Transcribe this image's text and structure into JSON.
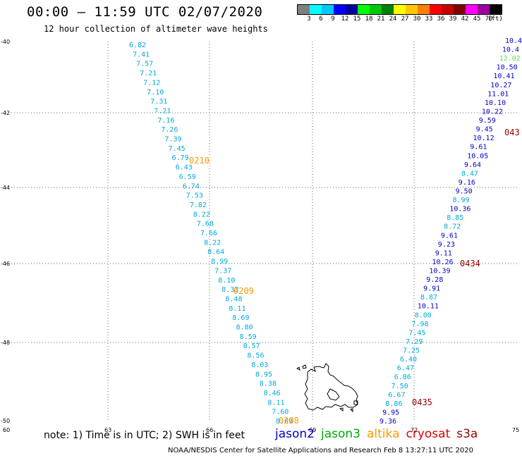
{
  "title": "00:00 – 11:59 UTC 02/07/2020",
  "subtitle": "12 hour collection of altimeter wave heights",
  "legend": {
    "colors": [
      "#808080",
      "#00ffff",
      "#00c8ff",
      "#0000ff",
      "#0000a0",
      "#00ff00",
      "#00c800",
      "#008000",
      "#ffff00",
      "#ffc800",
      "#ff8000",
      "#ff0000",
      "#c80000",
      "#800000",
      "#ff00ff",
      "#a000a0",
      "#000000"
    ],
    "labels": [
      "3",
      "6",
      "9",
      "12",
      "15",
      "18",
      "21",
      "24",
      "27",
      "30",
      "33",
      "36",
      "39",
      "42",
      "45",
      "70",
      "(ft)"
    ]
  },
  "map": {
    "lon_range": [
      60,
      75
    ],
    "lat_range": [
      -50,
      -40
    ],
    "x_ticks": [
      "60",
      "63",
      "66",
      "69",
      "72",
      "75"
    ],
    "y_ticks": [
      "-40",
      "-42",
      "-44",
      "-46",
      "-48",
      "-50"
    ],
    "track1": {
      "color": "#00aadd",
      "values": [
        "6.82",
        "7.41",
        "7.57",
        "7.21",
        "7.12",
        "7.10",
        "7.31",
        "7.21",
        "7.16",
        "7.26",
        "7.39",
        "7.45",
        "6.79",
        "6.43",
        "6.59",
        "6.74",
        "7.53",
        "7.82",
        "8.22",
        "7.68",
        "7.66",
        "8.22",
        "8.64",
        "8.99",
        "7.37",
        "8.10",
        "8.33",
        "8.48",
        "8.11",
        "8.69",
        "8.80",
        "8.59",
        "8.57",
        "8.56",
        "8.03",
        "8.95",
        "8.38",
        "8.46",
        "8.11",
        "7.60",
        "8.69"
      ],
      "times": [
        {
          "label": "0210",
          "color": "#ff9900"
        },
        {
          "label": "0209",
          "color": "#ff9900"
        },
        {
          "label": "0208",
          "color": "#ff9900"
        }
      ]
    },
    "track2": {
      "values": [
        {
          "v": "10.4",
          "c": "#0000cc"
        },
        {
          "v": "10.4",
          "c": "#0000cc"
        },
        {
          "v": "12.02",
          "c": "#66dd44"
        },
        {
          "v": "10.50",
          "c": "#0000cc"
        },
        {
          "v": "10.41",
          "c": "#0000cc"
        },
        {
          "v": "10.27",
          "c": "#0000cc"
        },
        {
          "v": "11.01",
          "c": "#0000cc"
        },
        {
          "v": "10.10",
          "c": "#0000cc"
        },
        {
          "v": "10.22",
          "c": "#0000cc"
        },
        {
          "v": "9.59",
          "c": "#0000cc"
        },
        {
          "v": "9.45",
          "c": "#0000cc"
        },
        {
          "v": "10.12",
          "c": "#0000cc"
        },
        {
          "v": "9.61",
          "c": "#0000cc"
        },
        {
          "v": "10.05",
          "c": "#0000cc"
        },
        {
          "v": "9.64",
          "c": "#0000cc"
        },
        {
          "v": "8.47",
          "c": "#00aadd"
        },
        {
          "v": "9.16",
          "c": "#0000cc"
        },
        {
          "v": "9.50",
          "c": "#0000cc"
        },
        {
          "v": "8.99",
          "c": "#00aadd"
        },
        {
          "v": "10.36",
          "c": "#0000cc"
        },
        {
          "v": "8.85",
          "c": "#00aadd"
        },
        {
          "v": "8.72",
          "c": "#00aadd"
        },
        {
          "v": "9.61",
          "c": "#0000cc"
        },
        {
          "v": "9.23",
          "c": "#0000cc"
        },
        {
          "v": "9.11",
          "c": "#0000cc"
        },
        {
          "v": "10.26",
          "c": "#0000cc"
        },
        {
          "v": "10.39",
          "c": "#0000cc"
        },
        {
          "v": "9.28",
          "c": "#0000cc"
        },
        {
          "v": "9.91",
          "c": "#0000cc"
        },
        {
          "v": "8.87",
          "c": "#00aadd"
        },
        {
          "v": "10.11",
          "c": "#0000cc"
        },
        {
          "v": "8.00",
          "c": "#00aadd"
        },
        {
          "v": "7.98",
          "c": "#00aadd"
        },
        {
          "v": "7.45",
          "c": "#00aadd"
        },
        {
          "v": "7.29",
          "c": "#00aadd"
        },
        {
          "v": "7.25",
          "c": "#00aadd"
        },
        {
          "v": "6.40",
          "c": "#00aadd"
        },
        {
          "v": "6.47",
          "c": "#00aadd"
        },
        {
          "v": "6.86",
          "c": "#00aadd"
        },
        {
          "v": "7.50",
          "c": "#00aadd"
        },
        {
          "v": "6.67",
          "c": "#00aadd"
        },
        {
          "v": "8.86",
          "c": "#00aadd"
        },
        {
          "v": "9.95",
          "c": "#0000cc"
        },
        {
          "v": "9.36",
          "c": "#0000cc"
        }
      ],
      "times": [
        {
          "label": "043",
          "color": "#990000"
        },
        {
          "label": "0434",
          "color": "#990000"
        },
        {
          "label": "0435",
          "color": "#990000"
        }
      ]
    }
  },
  "note": "note: 1) Time is in UTC; 2) SWH is in feet",
  "satellites": [
    {
      "name": "jason2",
      "color": "#0000cc"
    },
    {
      "name": "jason3",
      "color": "#00aa00"
    },
    {
      "name": "altika",
      "color": "#ff9900"
    },
    {
      "name": "cryosat",
      "color": "#dd0000"
    },
    {
      "name": "s3a",
      "color": "#990000"
    }
  ],
  "credit": "NOAA/NESDIS Center for Satellite Applications and Research    Feb  8 13:27:11 UTC 2020"
}
